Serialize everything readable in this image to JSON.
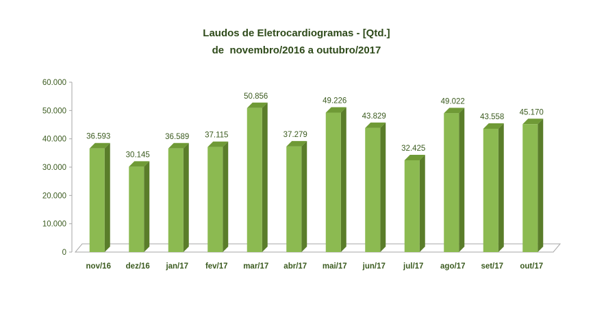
{
  "chart_data": {
    "type": "bar",
    "title": "Laudos de Eletrocardiogramas - [Qtd.]",
    "subtitle": "de  novembro/2016 a outubro/2017",
    "xlabel": "",
    "ylabel": "",
    "categories": [
      "nov/16",
      "dez/16",
      "jan/17",
      "fev/17",
      "mar/17",
      "abr/17",
      "mai/17",
      "jun/17",
      "jul/17",
      "ago/17",
      "set/17",
      "out/17"
    ],
    "values": [
      36593,
      30145,
      36589,
      37115,
      50856,
      37279,
      49226,
      43829,
      32425,
      49022,
      43558,
      45170
    ],
    "value_labels": [
      "36.593",
      "30.145",
      "36.589",
      "37.115",
      "50.856",
      "37.279",
      "49.226",
      "43.829",
      "32.425",
      "49.022",
      "43.558",
      "45.170"
    ],
    "ylim": [
      0,
      60000
    ],
    "yticks": [
      0,
      10000,
      20000,
      30000,
      40000,
      50000,
      60000
    ],
    "ytick_labels": [
      "0",
      "10.000",
      "20.000",
      "30.000",
      "40.000",
      "50.000",
      "60.000"
    ],
    "grid": false,
    "legend": "none",
    "style": "3d-column",
    "colors": {
      "bar_front": "#8cba51",
      "bar_side": "#5a7d2a",
      "bar_top": "#6f9a36",
      "text": "#3a5a1e",
      "title": "#2e4a1a",
      "axis": "#a6a6a6"
    }
  }
}
